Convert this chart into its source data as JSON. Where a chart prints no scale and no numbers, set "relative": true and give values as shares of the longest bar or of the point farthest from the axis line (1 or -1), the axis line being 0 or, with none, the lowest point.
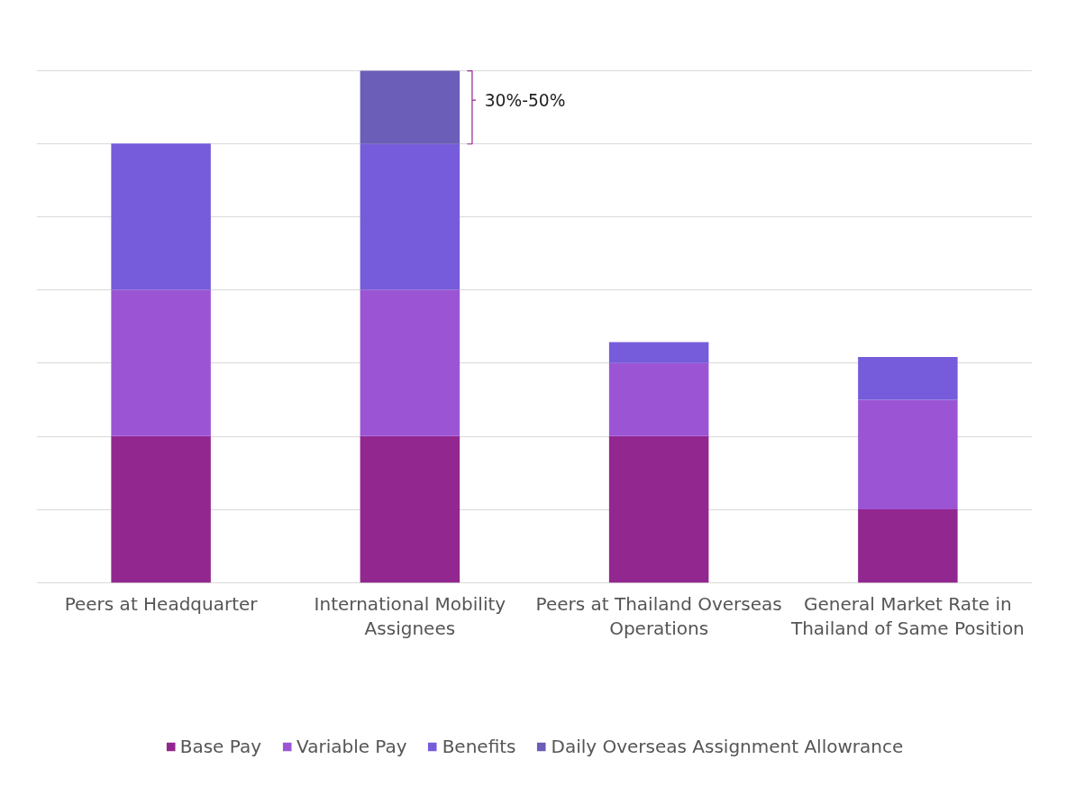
{
  "chart_data": {
    "type": "bar",
    "stacked": true,
    "relative": true,
    "grid": "y",
    "legend": "bottom",
    "categories": [
      "Peers at Headquarter",
      "International Mobility Assignees",
      "Peers at Thailand Overseas Operations",
      "General Market Rate in Thailand of Same Position"
    ],
    "series": [
      {
        "name": "Base Pay",
        "color": "#92278f",
        "values": [
          0.286,
          0.286,
          0.286,
          0.143
        ]
      },
      {
        "name": "Variable Pay",
        "color": "#9b55d4",
        "values": [
          0.286,
          0.286,
          0.143,
          0.214
        ]
      },
      {
        "name": "Benefits",
        "color": "#765cdb",
        "values": [
          0.286,
          0.285,
          0.041,
          0.084
        ]
      },
      {
        "name": "Daily Overseas Assignment Allowrance",
        "color": "#6a5eb8",
        "values": [
          null,
          0.143,
          null,
          null
        ]
      }
    ],
    "annotations": [
      "30%-50%"
    ]
  }
}
